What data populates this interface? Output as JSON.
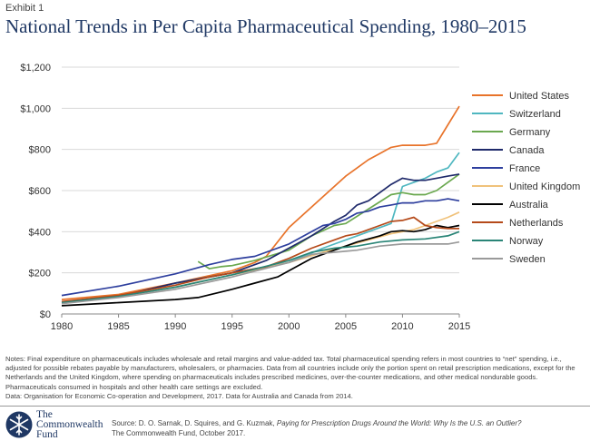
{
  "header": {
    "exhibit": "Exhibit 1",
    "title": "National Trends in Per Capita Pharmaceutical Spending, 1980–2015"
  },
  "chart_data": {
    "type": "line",
    "title": "National Trends in Per Capita Pharmaceutical Spending, 1980–2015",
    "xlabel": "",
    "ylabel": "",
    "xlim": [
      1980,
      2015
    ],
    "ylim": [
      0,
      1200
    ],
    "x_ticks": [
      "1980",
      "1985",
      "1990",
      "1995",
      "2000",
      "2005",
      "2010",
      "2015"
    ],
    "x_tick_values": [
      1980,
      1985,
      1990,
      1995,
      2000,
      2005,
      2010,
      2015
    ],
    "y_ticks": [
      "$0",
      "$200",
      "$400",
      "$600",
      "$800",
      "$1,000",
      "$1,200"
    ],
    "y_tick_values": [
      0,
      200,
      400,
      600,
      800,
      1000,
      1200
    ],
    "grid": "horizontal",
    "legend_position": "right",
    "series": [
      {
        "name": "United States",
        "color": "#e8732a",
        "points": [
          [
            1980,
            70
          ],
          [
            1985,
            95
          ],
          [
            1990,
            150
          ],
          [
            1995,
            210
          ],
          [
            1997,
            250
          ],
          [
            1998,
            280
          ],
          [
            2000,
            420
          ],
          [
            2002,
            520
          ],
          [
            2004,
            620
          ],
          [
            2005,
            670
          ],
          [
            2006,
            710
          ],
          [
            2007,
            750
          ],
          [
            2008,
            780
          ],
          [
            2009,
            810
          ],
          [
            2010,
            820
          ],
          [
            2011,
            820
          ],
          [
            2012,
            820
          ],
          [
            2013,
            830
          ],
          [
            2014,
            920
          ],
          [
            2015,
            1010
          ]
        ]
      },
      {
        "name": "Switzerland",
        "color": "#4fb7c0",
        "points": [
          [
            1990,
            150
          ],
          [
            1995,
            200
          ],
          [
            2000,
            250
          ],
          [
            2003,
            320
          ],
          [
            2006,
            380
          ],
          [
            2008,
            420
          ],
          [
            2009,
            440
          ],
          [
            2010,
            620
          ],
          [
            2011,
            640
          ],
          [
            2012,
            660
          ],
          [
            2013,
            690
          ],
          [
            2014,
            710
          ],
          [
            2015,
            785
          ]
        ]
      },
      {
        "name": "Germany",
        "color": "#6aa84f",
        "points": [
          [
            1992,
            255
          ],
          [
            1993,
            220
          ],
          [
            1994,
            230
          ],
          [
            1995,
            235
          ],
          [
            1997,
            260
          ],
          [
            2000,
            310
          ],
          [
            2002,
            380
          ],
          [
            2004,
            430
          ],
          [
            2005,
            440
          ],
          [
            2007,
            510
          ],
          [
            2009,
            580
          ],
          [
            2010,
            590
          ],
          [
            2011,
            580
          ],
          [
            2012,
            580
          ],
          [
            2013,
            600
          ],
          [
            2014,
            640
          ],
          [
            2015,
            680
          ]
        ]
      },
      {
        "name": "Canada",
        "color": "#1f2a6b",
        "points": [
          [
            1980,
            55
          ],
          [
            1985,
            85
          ],
          [
            1990,
            150
          ],
          [
            1995,
            200
          ],
          [
            1998,
            260
          ],
          [
            2000,
            320
          ],
          [
            2002,
            380
          ],
          [
            2004,
            450
          ],
          [
            2005,
            480
          ],
          [
            2006,
            530
          ],
          [
            2007,
            550
          ],
          [
            2008,
            590
          ],
          [
            2009,
            630
          ],
          [
            2010,
            660
          ],
          [
            2011,
            650
          ],
          [
            2012,
            650
          ],
          [
            2013,
            660
          ],
          [
            2014,
            670
          ],
          [
            2015,
            680
          ]
        ]
      },
      {
        "name": "France",
        "color": "#2e3f9e",
        "points": [
          [
            1980,
            90
          ],
          [
            1985,
            135
          ],
          [
            1990,
            195
          ],
          [
            1993,
            240
          ],
          [
            1995,
            265
          ],
          [
            1997,
            280
          ],
          [
            2000,
            340
          ],
          [
            2002,
            400
          ],
          [
            2003,
            430
          ],
          [
            2004,
            440
          ],
          [
            2005,
            460
          ],
          [
            2006,
            490
          ],
          [
            2007,
            500
          ],
          [
            2008,
            520
          ],
          [
            2009,
            530
          ],
          [
            2010,
            540
          ],
          [
            2011,
            540
          ],
          [
            2012,
            550
          ],
          [
            2013,
            550
          ],
          [
            2014,
            560
          ],
          [
            2015,
            550
          ]
        ]
      },
      {
        "name": "United Kingdom",
        "color": "#f0c27b",
        "points": [
          [
            1980,
            55
          ],
          [
            1985,
            85
          ],
          [
            1990,
            130
          ],
          [
            1995,
            190
          ],
          [
            2000,
            250
          ],
          [
            2003,
            300
          ],
          [
            2005,
            330
          ],
          [
            2007,
            360
          ],
          [
            2009,
            390
          ],
          [
            2010,
            400
          ],
          [
            2011,
            410
          ],
          [
            2012,
            430
          ],
          [
            2013,
            450
          ],
          [
            2014,
            470
          ],
          [
            2015,
            495
          ]
        ]
      },
      {
        "name": "Australia",
        "color": "#000000",
        "points": [
          [
            1980,
            40
          ],
          [
            1985,
            55
          ],
          [
            1990,
            70
          ],
          [
            1992,
            80
          ],
          [
            1995,
            120
          ],
          [
            1997,
            150
          ],
          [
            1999,
            180
          ],
          [
            2000,
            210
          ],
          [
            2002,
            270
          ],
          [
            2004,
            310
          ],
          [
            2005,
            330
          ],
          [
            2006,
            350
          ],
          [
            2008,
            380
          ],
          [
            2009,
            400
          ],
          [
            2010,
            405
          ],
          [
            2011,
            400
          ],
          [
            2012,
            410
          ],
          [
            2013,
            430
          ],
          [
            2014,
            420
          ],
          [
            2015,
            430
          ]
        ]
      },
      {
        "name": "Netherlands",
        "color": "#b54a1a",
        "points": [
          [
            1980,
            60
          ],
          [
            1985,
            90
          ],
          [
            1990,
            140
          ],
          [
            1993,
            180
          ],
          [
            1995,
            200
          ],
          [
            1998,
            230
          ],
          [
            2000,
            270
          ],
          [
            2002,
            320
          ],
          [
            2004,
            360
          ],
          [
            2005,
            380
          ],
          [
            2006,
            390
          ],
          [
            2007,
            410
          ],
          [
            2008,
            430
          ],
          [
            2009,
            450
          ],
          [
            2010,
            455
          ],
          [
            2011,
            470
          ],
          [
            2012,
            430
          ],
          [
            2013,
            420
          ],
          [
            2014,
            415
          ],
          [
            2015,
            415
          ]
        ]
      },
      {
        "name": "Norway",
        "color": "#2a8577",
        "points": [
          [
            1980,
            55
          ],
          [
            1985,
            85
          ],
          [
            1990,
            130
          ],
          [
            1995,
            190
          ],
          [
            2000,
            260
          ],
          [
            2002,
            300
          ],
          [
            2004,
            320
          ],
          [
            2006,
            330
          ],
          [
            2008,
            350
          ],
          [
            2010,
            360
          ],
          [
            2012,
            365
          ],
          [
            2014,
            380
          ],
          [
            2015,
            400
          ]
        ]
      },
      {
        "name": "Sweden",
        "color": "#9a9a9a",
        "points": [
          [
            1980,
            50
          ],
          [
            1985,
            80
          ],
          [
            1990,
            120
          ],
          [
            1995,
            180
          ],
          [
            2000,
            250
          ],
          [
            2002,
            290
          ],
          [
            2004,
            300
          ],
          [
            2006,
            310
          ],
          [
            2008,
            330
          ],
          [
            2010,
            340
          ],
          [
            2012,
            340
          ],
          [
            2014,
            340
          ],
          [
            2015,
            350
          ]
        ]
      }
    ]
  },
  "notes": {
    "text": "Notes: Final expenditure on pharmaceuticals includes wholesale and retail margins and value-added tax. Total pharmaceutical spending refers in most countries to “net” spending, i.e., adjusted for possible rebates payable by manufacturers, wholesalers, or pharmacies. Data from all countries include only the portion spent on retail prescription medications, except for the Netherlands and the United Kingdom, where spending on pharmaceuticals includes prescribed medicines, over-the-counter medications, and other medical nondurable goods. Pharmaceuticals consumed in hospitals and other health care settings are excluded.",
    "data_source": "Data: Organisation for Economic Co-operation and Development, 2017. Data for Australia and Canada from 2014."
  },
  "footer": {
    "brand_line1": "The",
    "brand_line2": "Commonwealth",
    "brand_line3": "Fund",
    "source_prefix": "Source: D. O. Sarnak, D. Squires, and G. Kuzmak, ",
    "source_title": "Paying for Prescription Drugs Around the World: Why Is the U.S. an Outlier?",
    "source_line2": "The Commonwealth Fund, October 2017.",
    "brand_color": "#1f3864"
  }
}
